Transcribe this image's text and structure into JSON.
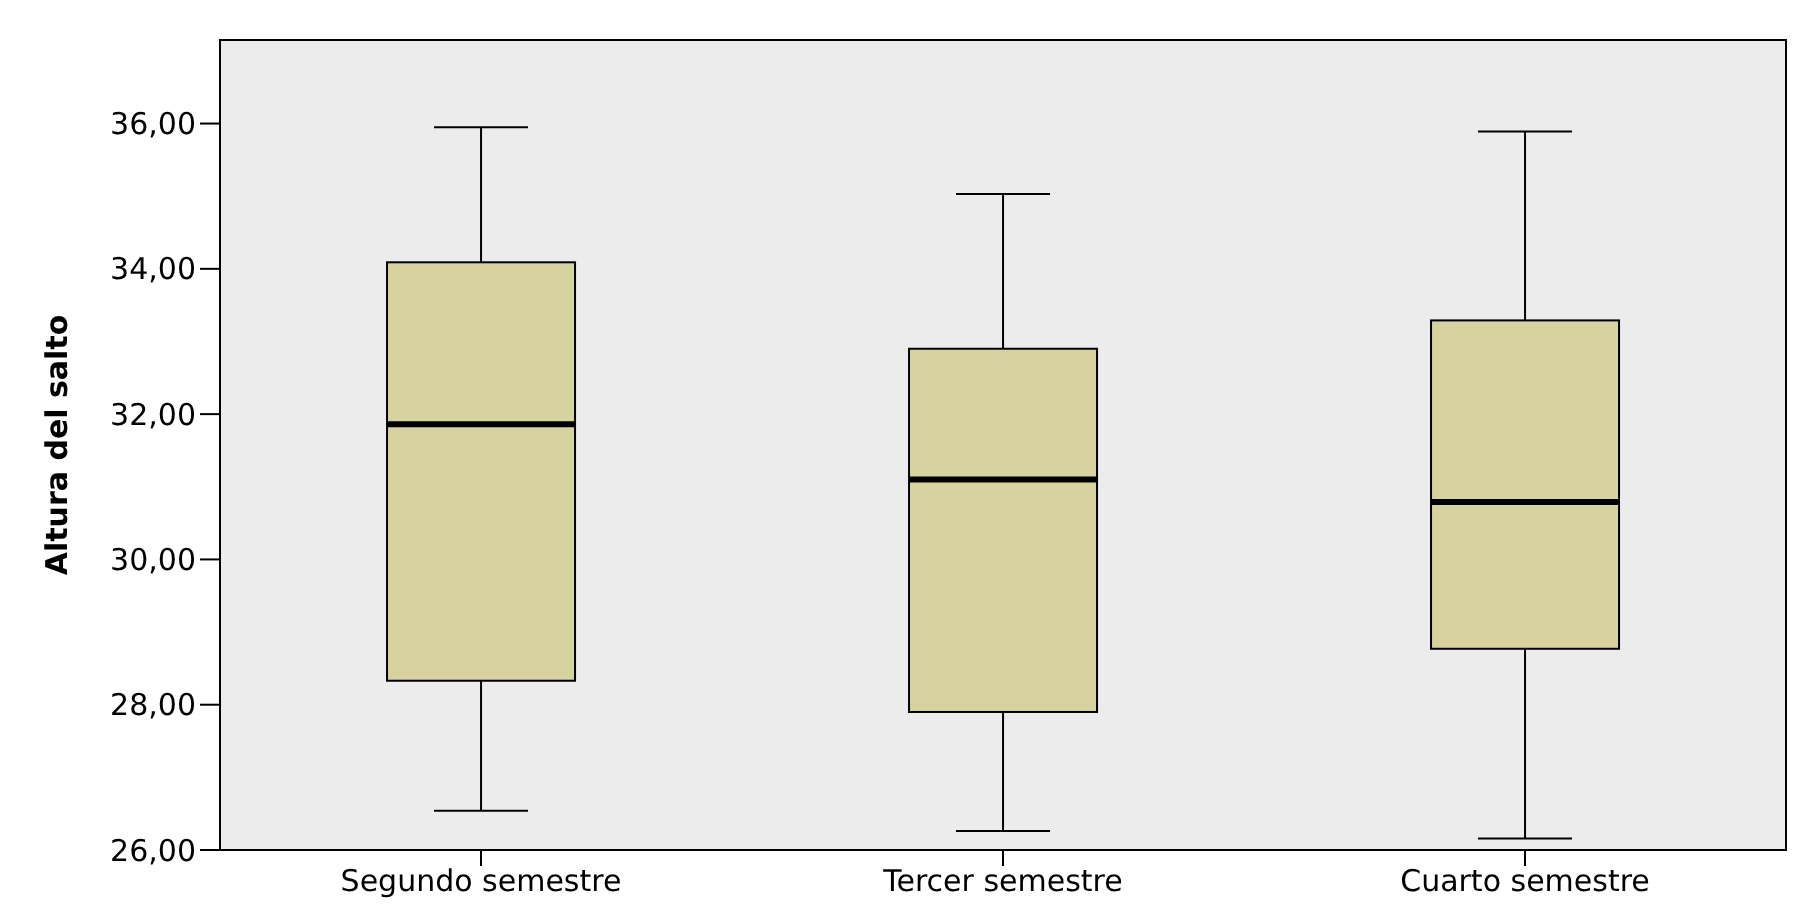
{
  "chart_data": {
    "type": "box",
    "ylabel": "Altura del salto",
    "categories": [
      "Segundo semestre",
      "Tercer semestre",
      "Cuarto semestre"
    ],
    "boxes": [
      {
        "low": 26.54,
        "q1": 28.33,
        "median": 31.86,
        "q3": 34.09,
        "high": 35.95
      },
      {
        "low": 26.26,
        "q1": 27.9,
        "median": 31.1,
        "q3": 32.9,
        "high": 35.03
      },
      {
        "low": 26.16,
        "q1": 28.77,
        "median": 30.79,
        "q3": 33.29,
        "high": 35.89
      }
    ],
    "color": "#d6d3a0",
    "ylim": [
      26,
      37.15
    ],
    "yticks": [
      {
        "value": 26,
        "label": "26,00"
      },
      {
        "value": 28,
        "label": "28,00"
      },
      {
        "value": 30,
        "label": "30,00"
      },
      {
        "value": 32,
        "label": "32,00"
      },
      {
        "value": 34,
        "label": "34,00"
      },
      {
        "value": 36,
        "label": "36,00"
      }
    ],
    "grid": false
  }
}
